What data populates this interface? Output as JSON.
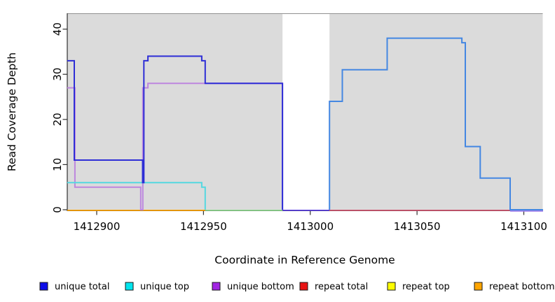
{
  "chart_data": {
    "type": "line",
    "subtype": "step-coverage-plot",
    "title": "",
    "xlabel": "Coordinate in Reference Genome",
    "ylabel": "Read Coverage Depth",
    "xlim": [
      1412886.2,
      1413109
    ],
    "ylim": [
      0,
      43.5
    ],
    "x_ticks": [
      1412900,
      1412950,
      1413000,
      1413050,
      1413100
    ],
    "x_tick_labels": [
      "1412900",
      "1412950",
      "1413000",
      "1413050",
      "1413100"
    ],
    "y_ticks": [
      0,
      10,
      20,
      30,
      40
    ],
    "y_tick_labels": [
      "0",
      "10",
      "20",
      "30",
      "40"
    ],
    "grid": "off",
    "panel_bg": "#dbdbdb",
    "panel_top_edge_color": "#909090",
    "axis_color": "#303030",
    "masked_region": {
      "from": 1412987,
      "to": 1413009,
      "fill": "#ffffff"
    },
    "legend_position": "bottom",
    "legend": [
      {
        "label": "unique total",
        "color": "#0d0de8"
      },
      {
        "label": "unique top",
        "color": "#00e5ee"
      },
      {
        "label": "unique bottom",
        "color": "#a226e3"
      },
      {
        "label": "repeat total",
        "color": "#e81414"
      },
      {
        "label": "repeat top",
        "color": "#fdfd00"
      },
      {
        "label": "repeat bottom",
        "color": "#ffa500"
      }
    ],
    "series": [
      {
        "name": "unique total",
        "parts": [
          {
            "draw_color": "#2e2ed6",
            "steps": [
              [
                1412886.2,
                33
              ],
              [
                1412889.5,
                11
              ],
              [
                1412921.5,
                6
              ],
              [
                1412922.1,
                33
              ],
              [
                1412924,
                34
              ],
              [
                1412949.2,
                33
              ],
              [
                1412950.8,
                28
              ],
              [
                1412987,
                0
              ]
            ],
            "end": 1412987
          },
          {
            "draw_color": "#4487e2",
            "steps": [
              [
                1413009,
                0
              ],
              [
                1413009,
                24
              ],
              [
                1413015,
                31
              ],
              [
                1413036,
                38
              ],
              [
                1413071,
                37
              ],
              [
                1413072.6,
                14
              ],
              [
                1413079.6,
                7
              ],
              [
                1413093.6,
                0
              ]
            ],
            "end": 1413109
          }
        ]
      },
      {
        "name": "unique top",
        "parts": [
          {
            "draw_color": "#55d8e0",
            "steps": [
              [
                1412886.2,
                6
              ],
              [
                1412949.2,
                5
              ],
              [
                1412950.8,
                0
              ]
            ],
            "end": 1412950.8
          }
        ]
      },
      {
        "name": "unique bottom",
        "parts": [
          {
            "draw_color": "#bd86de",
            "steps": [
              [
                1412886.2,
                27
              ],
              [
                1412889.8,
                5
              ],
              [
                1412920.6,
                0
              ],
              [
                1412921.6,
                27
              ],
              [
                1412924,
                28
              ],
              [
                1412987,
                0
              ]
            ],
            "end": 1412987
          }
        ]
      },
      {
        "name": "repeat total",
        "parts": [],
        "value_constant": 0
      },
      {
        "name": "repeat top",
        "parts": [],
        "value_constant": 0
      },
      {
        "name": "repeat bottom",
        "parts": [],
        "value_constant": 0
      }
    ],
    "baseline_segments": [
      {
        "from": 1412886.2,
        "to": 1412950.8,
        "color": "#ffa500",
        "dy": 0.9,
        "represents": "repeat lines at 0"
      },
      {
        "from": 1412950.8,
        "to": 1412987,
        "color": "#8fd98f",
        "dy": 0.9,
        "represents": "unique top + repeat top at 0"
      },
      {
        "from": 1412987,
        "to": 1413009,
        "color": "#5b40e0",
        "dy": 0.9,
        "represents": "unique lines at 0 through masked region"
      },
      {
        "from": 1413009,
        "to": 1413093.6,
        "color": "#d05570",
        "dy": 0.9,
        "represents": "repeat total at 0"
      },
      {
        "from": 1413093.6,
        "to": 1413109,
        "color": "#9a7ce8",
        "dy": 1.9,
        "represents": "unique bottom at 0"
      }
    ]
  }
}
